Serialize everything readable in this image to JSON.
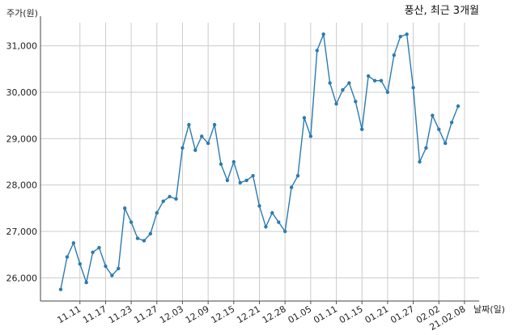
{
  "chart_data": {
    "type": "line",
    "title": "풍산, 최근 3개월",
    "xlabel": "날짜(일)",
    "ylabel": "주가(원)",
    "ylim": [
      25500,
      31500
    ],
    "yticks": [
      26000,
      27000,
      28000,
      29000,
      30000,
      31000
    ],
    "ytick_labels": [
      "26,000",
      "27,000",
      "28,000",
      "29,000",
      "30,000",
      "31,000"
    ],
    "xtick_labels": [
      "11.11",
      "11.17",
      "11.23",
      "11.27",
      "12.03",
      "12.09",
      "12.15",
      "12.21",
      "12.28",
      "01.05",
      "01.11",
      "01.15",
      "01.21",
      "01.27",
      "02.02",
      "21.02.08"
    ],
    "xtick_index": [
      3,
      7,
      11,
      15,
      19,
      23,
      27,
      31,
      35,
      39,
      43,
      47,
      51,
      55,
      59,
      63
    ],
    "grid": true,
    "line_color": "#2b7bb0",
    "series": [
      {
        "values": [
          25750,
          26450,
          26750,
          26300,
          25900,
          26550,
          26650,
          26250,
          26050,
          26200,
          27500,
          27200,
          26850,
          26800,
          26950,
          27400,
          27650,
          27750,
          27700,
          28800,
          29300,
          28750,
          29050,
          28900,
          29300,
          28450,
          28100,
          28500,
          28050,
          28100,
          28200,
          27550,
          27100,
          27400,
          27200,
          27000,
          27950,
          28200,
          29450,
          29050,
          30900,
          31250,
          30200,
          29750,
          30050,
          30200,
          29800,
          29200,
          30350,
          30250,
          30250,
          30000,
          30800,
          31200,
          31250,
          30100,
          28500,
          28800,
          29500,
          29200,
          28900,
          29350,
          29700
        ]
      }
    ]
  }
}
